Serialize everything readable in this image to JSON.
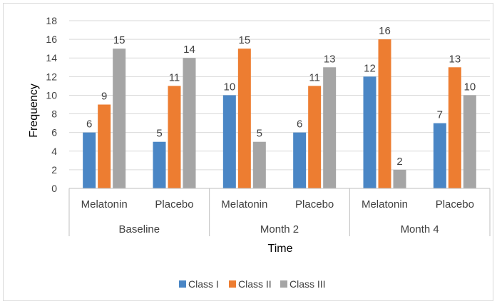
{
  "chart_data": {
    "type": "bar",
    "groups": [
      {
        "label": "Baseline",
        "categories": [
          "Melatonin",
          "Placebo"
        ]
      },
      {
        "label": "Month 2",
        "categories": [
          "Melatonin",
          "Placebo"
        ]
      },
      {
        "label": "Month 4",
        "categories": [
          "Melatonin",
          "Placebo"
        ]
      }
    ],
    "series": [
      {
        "name": "Class I",
        "color": "#4a86c5",
        "values": [
          6,
          5,
          10,
          6,
          12,
          7
        ]
      },
      {
        "name": "Class II",
        "color": "#ed7d31",
        "values": [
          9,
          11,
          15,
          11,
          16,
          13
        ]
      },
      {
        "name": "Class III",
        "color": "#a5a5a5",
        "values": [
          15,
          14,
          5,
          13,
          2,
          10
        ]
      }
    ],
    "xlabel": "Time",
    "ylabel": "Frequency",
    "ylim": [
      0,
      18
    ],
    "yticks": [
      0,
      2,
      4,
      6,
      8,
      10,
      12,
      14,
      16,
      18
    ],
    "grid": true,
    "legend_position": "bottom"
  }
}
